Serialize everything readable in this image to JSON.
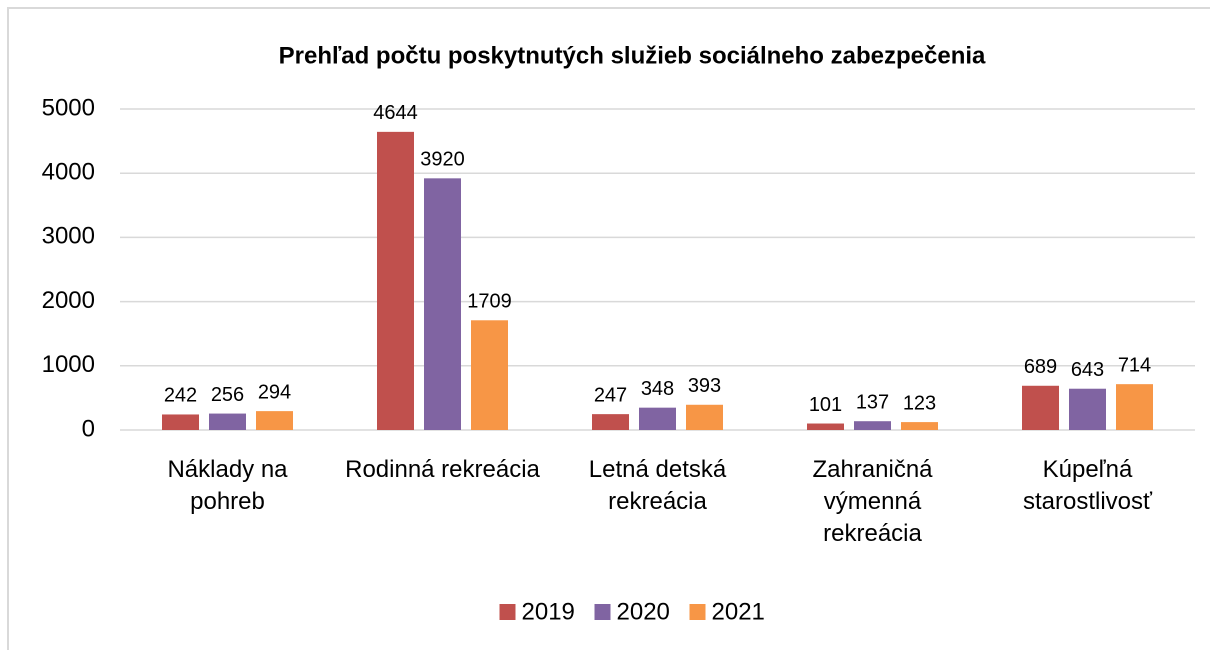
{
  "chart_data": {
    "type": "bar",
    "title": "Prehľad počtu poskytnutých služieb sociálneho zabezpečenia",
    "categories": [
      "Náklady na pohreb",
      "Rodinná rekreácia",
      "Letná detská rekreácia",
      "Zahraničná výmenná rekreácia",
      "Kúpeľná starostlivosť"
    ],
    "series": [
      {
        "name": "2019",
        "color": "#c0504d",
        "values": [
          242,
          4644,
          247,
          101,
          689
        ]
      },
      {
        "name": "2020",
        "color": "#8064a2",
        "values": [
          256,
          3920,
          348,
          137,
          643
        ]
      },
      {
        "name": "2021",
        "color": "#f79646",
        "values": [
          294,
          1709,
          393,
          123,
          714
        ]
      }
    ],
    "ylim": [
      0,
      5000
    ],
    "yticks": [
      0,
      1000,
      2000,
      3000,
      4000,
      5000
    ],
    "grid": true,
    "legend": "bottom"
  }
}
